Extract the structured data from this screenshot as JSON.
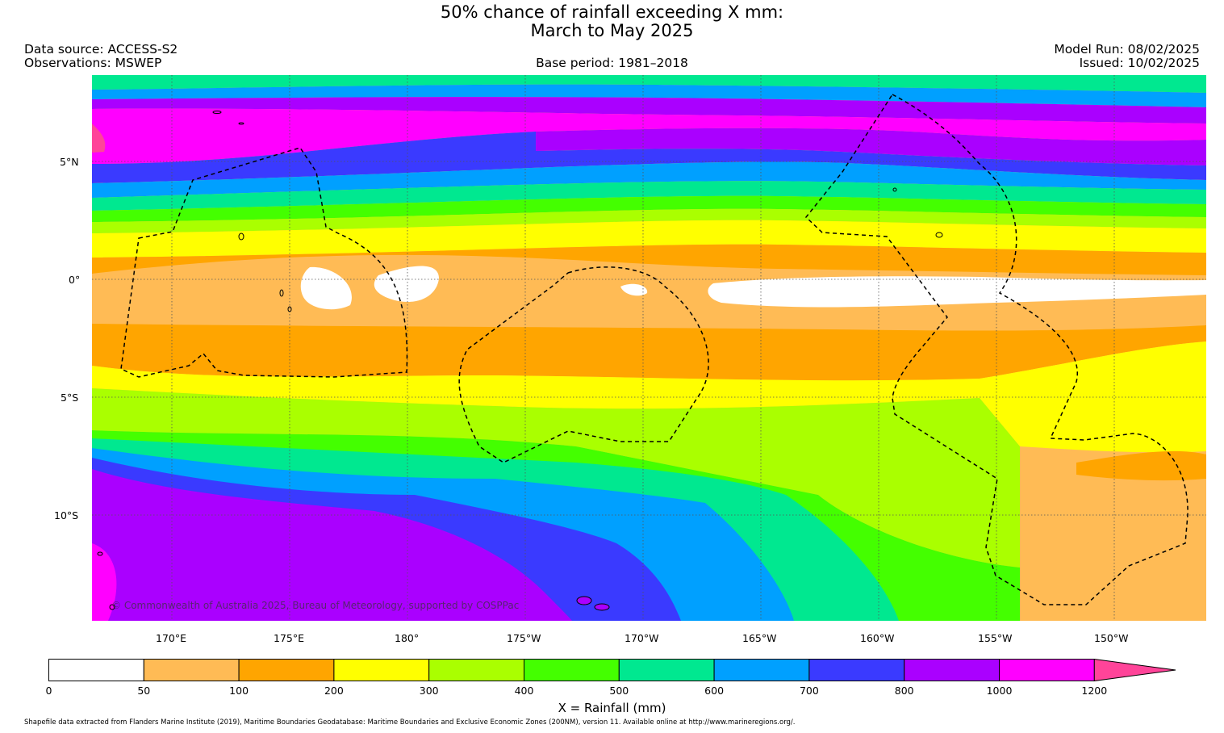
{
  "title": {
    "line1": "50% chance of rainfall exceeding X mm:",
    "line2": "March to May 2025"
  },
  "header": {
    "data_source": "Data source: ACCESS-S2",
    "observations": "Observations: MSWEP",
    "base_period": "Base period: 1981–2018",
    "model_run": "Model Run: 08/02/2025",
    "issued": "Issued: 10/02/2025"
  },
  "map": {
    "lat_labels": [
      "5°N",
      "0°",
      "5°S",
      "10°S"
    ],
    "lon_labels": [
      "170°E",
      "175°E",
      "180°",
      "175°W",
      "170°W",
      "165°W",
      "160°W",
      "155°W",
      "150°W"
    ],
    "copyright": "© Commonwealth of Australia 2025, Bureau of Meteorology, supported by COSPPac",
    "border_style": "black dashed EEZ outlines",
    "gridlines": "dotted"
  },
  "colorbar": {
    "bounds": [
      "0",
      "50",
      "100",
      "200",
      "300",
      "400",
      "500",
      "600",
      "700",
      "800",
      "1000",
      "1200"
    ],
    "colors": [
      "#ffffff",
      "#ffbb55",
      "#ffa500",
      "#ffff00",
      "#aaff00",
      "#44ff00",
      "#00e890",
      "#00a0ff",
      "#3a3aff",
      "#aa00ff",
      "#ff00ff",
      "#ff4499"
    ],
    "extend": "max",
    "label": "X = Rainfall (mm)"
  },
  "footer": "Shapefile data extracted from Flanders Marine Institute (2019), Maritime Boundaries Geodatabase: Maritime Boundaries and Exclusive Economic Zones (200NM), version 11. Available online at http://www.marineregions.org/."
}
